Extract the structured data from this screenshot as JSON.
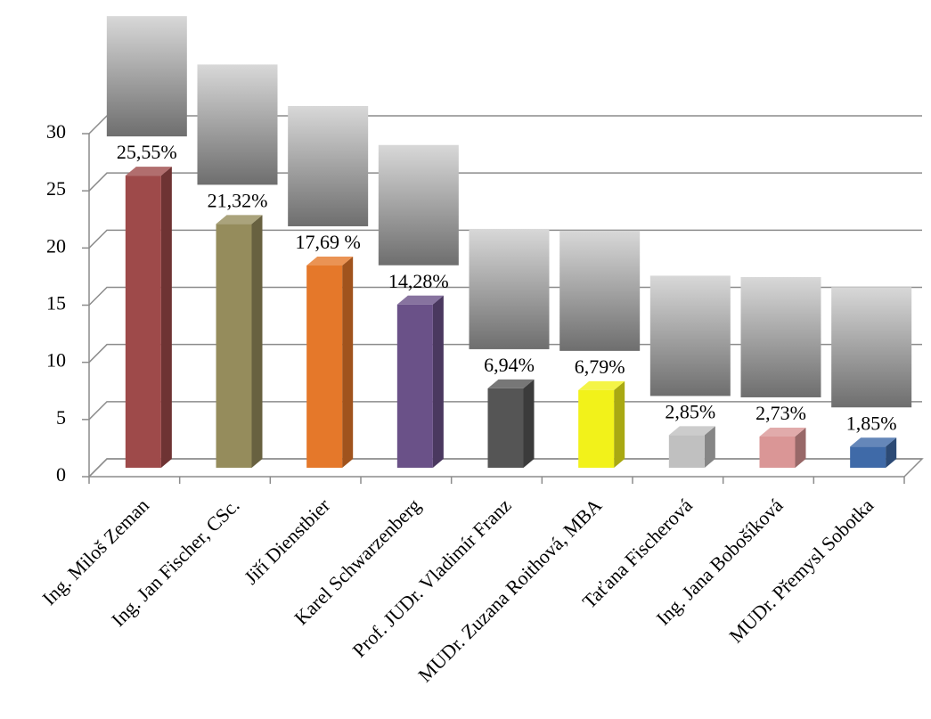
{
  "chart_data": {
    "type": "bar",
    "categories": [
      "Ing. Miloš Zeman",
      "Ing. Jan Fischer, CSc.",
      "Jiří Dienstbier",
      "Karel Schwarzenberg",
      "Prof. JUDr. Vladimír Franz",
      "MUDr. Zuzana Roithová, MBA",
      "Taťana Fischerová",
      "Ing. Jana Bobošíková",
      "MUDr. Přemysl Sobotka"
    ],
    "values": [
      25.55,
      21.32,
      17.69,
      14.28,
      6.94,
      6.79,
      2.85,
      2.73,
      1.85
    ],
    "value_labels": [
      "25,55%",
      "21,32%",
      "17,69 %",
      "14,28%",
      "6,94%",
      "6,79%",
      "2,85%",
      "2,73%",
      "1,85%"
    ],
    "colors": [
      "#9e4a4a",
      "#958c5c",
      "#e5782a",
      "#6a5188",
      "#555555",
      "#f2f21a",
      "#c0c0c0",
      "#da9696",
      "#3f6aa8"
    ],
    "ylim": [
      0,
      30
    ],
    "yticks": [
      0,
      5,
      10,
      15,
      20,
      25,
      30
    ],
    "grid": true
  }
}
